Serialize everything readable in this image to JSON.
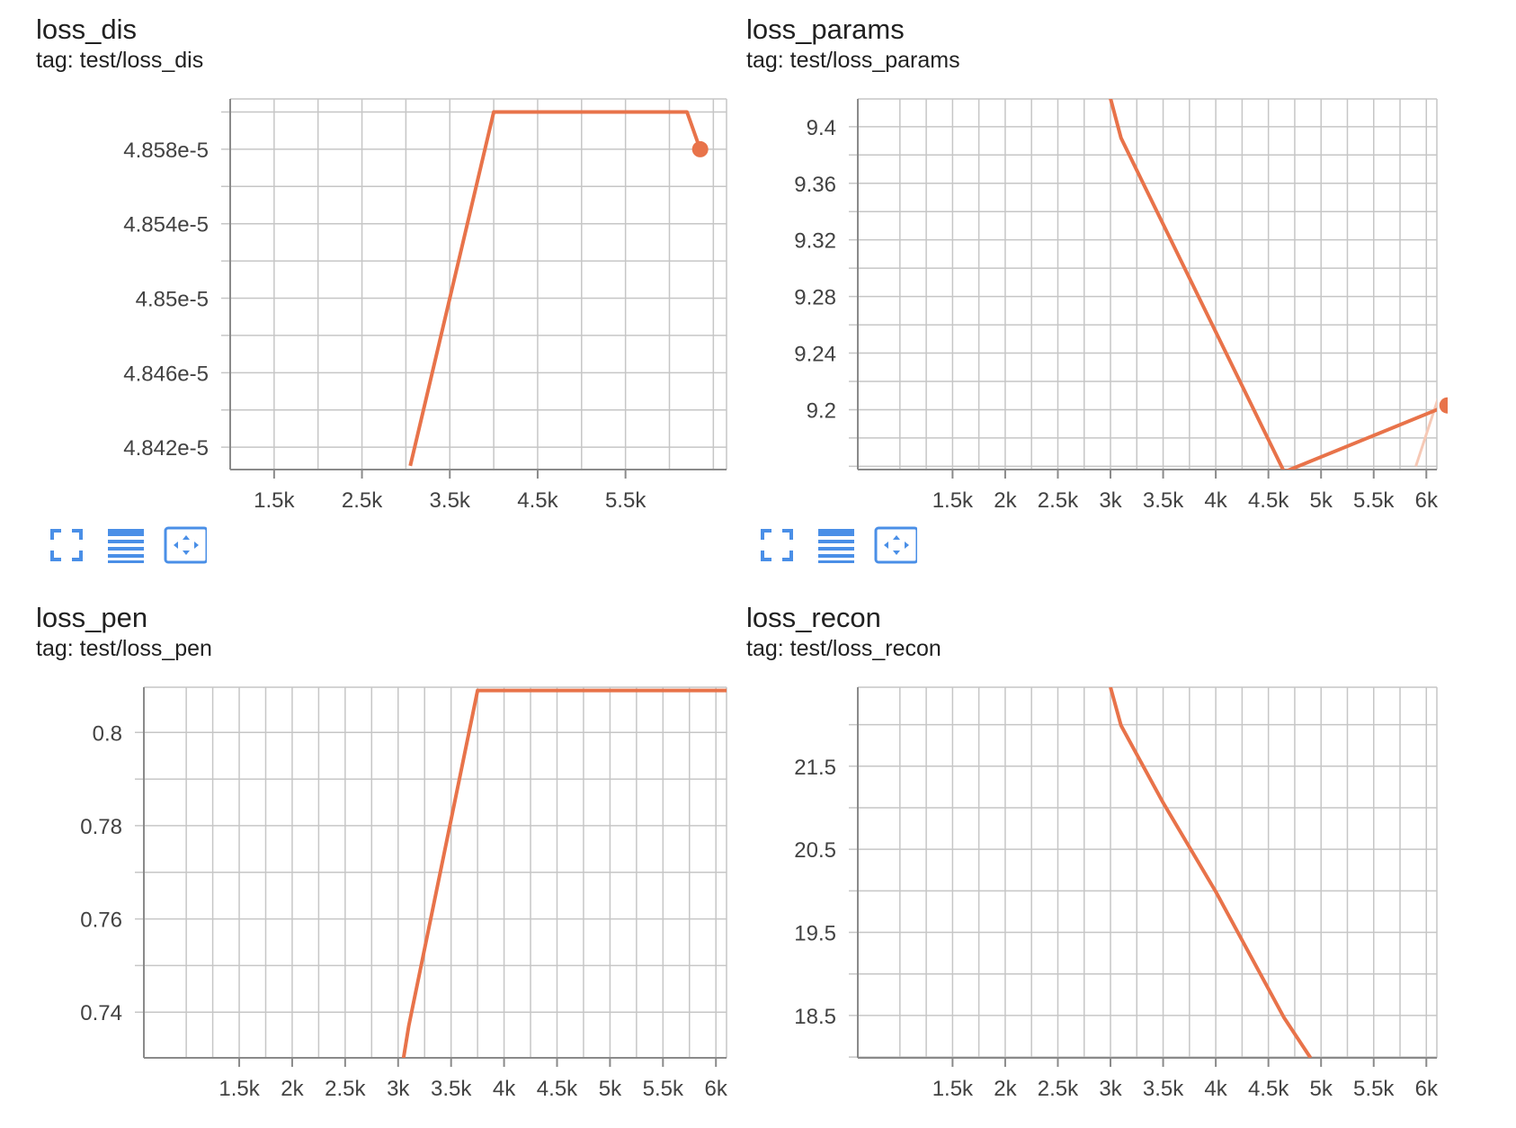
{
  "accent_color": "#e8734a",
  "toolbar_color": "#4a8fe7",
  "toolbar_icons": [
    "fullscreen-icon",
    "data-table-icon",
    "fit-domain-icon"
  ],
  "cards": [
    {
      "title": "loss_dis",
      "tag": "tag: test/loss_dis",
      "chart_data": {
        "type": "line",
        "series": [
          {
            "x": [
              3050,
              3100,
              4000,
              6200,
              6350
            ],
            "y": [
              4.841e-05,
              4.842e-05,
              4.86e-05,
              4.86e-05,
              4.858e-05
            ]
          }
        ],
        "xlim": [
          1000,
          6650
        ],
        "ylim": [
          4.8408e-05,
          4.8607e-05
        ],
        "xticks": [
          {
            "value": 1500,
            "label": "1.5k"
          },
          {
            "value": 2500,
            "label": "2.5k"
          },
          {
            "value": 3500,
            "label": "3.5k"
          },
          {
            "value": 4500,
            "label": "4.5k"
          },
          {
            "value": 5500,
            "label": "5.5k"
          }
        ],
        "yticks": [
          {
            "value": 4.842e-05,
            "label": "4.842e-5"
          },
          {
            "value": 4.846e-05,
            "label": "4.846e-5"
          },
          {
            "value": 4.85e-05,
            "label": "4.85e-5"
          },
          {
            "value": 4.854e-05,
            "label": "4.854e-5"
          },
          {
            "value": 4.858e-05,
            "label": "4.858e-5"
          }
        ],
        "last_point": {
          "x": 6350,
          "y": 4.858e-05
        },
        "grid": true
      }
    },
    {
      "title": "loss_params",
      "tag": "tag: test/loss_params",
      "chart_data": {
        "type": "line",
        "series": [
          {
            "x": [
              3000,
              3100,
              4650,
              6200
            ],
            "y": [
              9.42,
              9.392,
              9.156,
              9.203
            ]
          }
        ],
        "faint_series": {
          "x": [
            5900,
            6200
          ],
          "y": [
            9.16,
            9.228
          ]
        },
        "xlim": [
          600,
          6100
        ],
        "ylim": [
          9.1577,
          9.4196
        ],
        "xticks": [
          {
            "value": 1500,
            "label": "1.5k"
          },
          {
            "value": 2000,
            "label": "2k"
          },
          {
            "value": 2500,
            "label": "2.5k"
          },
          {
            "value": 3000,
            "label": "3k"
          },
          {
            "value": 3500,
            "label": "3.5k"
          },
          {
            "value": 4000,
            "label": "4k"
          },
          {
            "value": 4500,
            "label": "4.5k"
          },
          {
            "value": 5000,
            "label": "5k"
          },
          {
            "value": 5500,
            "label": "5.5k"
          },
          {
            "value": 6000,
            "label": "6k"
          }
        ],
        "yticks": [
          {
            "value": 9.2,
            "label": "9.2"
          },
          {
            "value": 9.24,
            "label": "9.24"
          },
          {
            "value": 9.28,
            "label": "9.28"
          },
          {
            "value": 9.32,
            "label": "9.32"
          },
          {
            "value": 9.36,
            "label": "9.36"
          },
          {
            "value": 9.4,
            "label": "9.4"
          }
        ],
        "last_point": {
          "x": 6200,
          "y": 9.203
        },
        "grid": true
      }
    },
    {
      "title": "loss_pen",
      "tag": "tag: test/loss_pen",
      "chart_data": {
        "type": "line",
        "series": [
          {
            "x": [
              3050,
              3100,
              3750,
              6200,
              6300
            ],
            "y": [
              0.73,
              0.737,
              0.809,
              0.809,
              0.8
            ]
          }
        ],
        "xlim": [
          600,
          6100
        ],
        "ylim": [
          0.7302,
          0.8097
        ],
        "xticks": [
          {
            "value": 1500,
            "label": "1.5k"
          },
          {
            "value": 2000,
            "label": "2k"
          },
          {
            "value": 2500,
            "label": "2.5k"
          },
          {
            "value": 3000,
            "label": "3k"
          },
          {
            "value": 3500,
            "label": "3.5k"
          },
          {
            "value": 4000,
            "label": "4k"
          },
          {
            "value": 4500,
            "label": "4.5k"
          },
          {
            "value": 5000,
            "label": "5k"
          },
          {
            "value": 5500,
            "label": "5.5k"
          },
          {
            "value": 6000,
            "label": "6k"
          }
        ],
        "yticks": [
          {
            "value": 0.74,
            "label": "0.74"
          },
          {
            "value": 0.76,
            "label": "0.76"
          },
          {
            "value": 0.78,
            "label": "0.78"
          },
          {
            "value": 0.8,
            "label": "0.8"
          }
        ],
        "last_point": {
          "x": 6300,
          "y": 0.8
        },
        "grid": true
      }
    },
    {
      "title": "loss_recon",
      "tag": "tag: test/loss_recon",
      "chart_data": {
        "type": "line",
        "series": [
          {
            "x": [
              3000,
              3100,
              3500,
              4000,
              4650,
              4900
            ],
            "y": [
              22.45,
              21.99,
              21.06,
              19.99,
              18.47,
              17.99
            ]
          }
        ],
        "xlim": [
          600,
          6100
        ],
        "ylim": [
          17.99,
          22.45
        ],
        "xticks": [
          {
            "value": 1500,
            "label": "1.5k"
          },
          {
            "value": 2000,
            "label": "2k"
          },
          {
            "value": 2500,
            "label": "2.5k"
          },
          {
            "value": 3000,
            "label": "3k"
          },
          {
            "value": 3500,
            "label": "3.5k"
          },
          {
            "value": 4000,
            "label": "4k"
          },
          {
            "value": 4500,
            "label": "4.5k"
          },
          {
            "value": 5000,
            "label": "5k"
          },
          {
            "value": 5500,
            "label": "5.5k"
          },
          {
            "value": 6000,
            "label": "6k"
          }
        ],
        "yticks": [
          {
            "value": 18.5,
            "label": "18.5"
          },
          {
            "value": 19.5,
            "label": "19.5"
          },
          {
            "value": 20.5,
            "label": "20.5"
          },
          {
            "value": 21.5,
            "label": "21.5"
          }
        ],
        "last_point": null,
        "grid": true
      }
    }
  ]
}
